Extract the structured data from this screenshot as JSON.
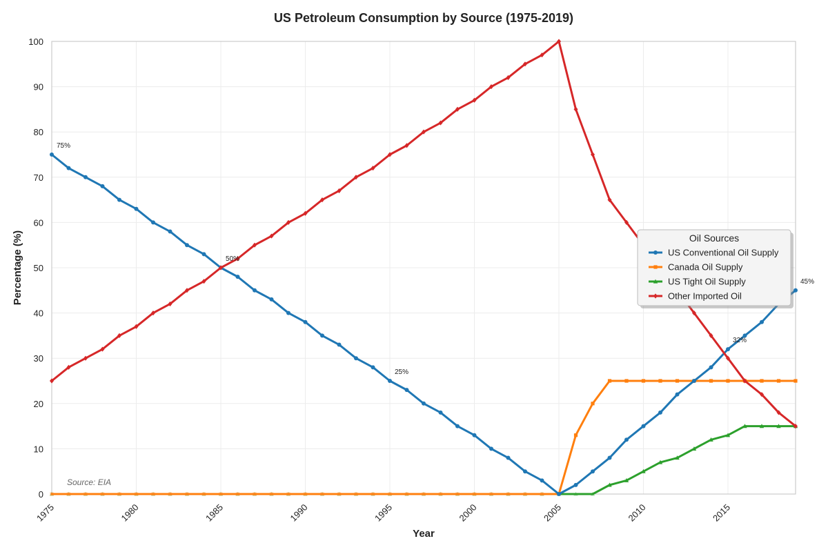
{
  "chart_data": {
    "type": "line",
    "title": "US Petroleum Consumption by Source (1975-2019)",
    "xlabel": "Year",
    "ylabel": "Percentage (%)",
    "xlim": [
      1975,
      2019
    ],
    "ylim": [
      0,
      100
    ],
    "xticks": [
      1975,
      1980,
      1985,
      1990,
      1995,
      2000,
      2005,
      2010,
      2015
    ],
    "yticks": [
      0,
      10,
      20,
      30,
      40,
      50,
      60,
      70,
      80,
      90,
      100
    ],
    "grid": true,
    "legend": {
      "title": "Oil Sources",
      "placement": "center-right"
    },
    "source_note": "Source: EIA",
    "x": [
      1975,
      1976,
      1977,
      1978,
      1979,
      1980,
      1981,
      1982,
      1983,
      1984,
      1985,
      1986,
      1987,
      1988,
      1989,
      1990,
      1991,
      1992,
      1993,
      1994,
      1995,
      1996,
      1997,
      1998,
      1999,
      2000,
      2001,
      2002,
      2003,
      2004,
      2005,
      2006,
      2007,
      2008,
      2009,
      2010,
      2011,
      2012,
      2013,
      2014,
      2015,
      2016,
      2017,
      2018,
      2019
    ],
    "series": [
      {
        "name": "US Conventional Oil Supply",
        "color": "#1f77b4",
        "marker": "circle",
        "values": [
          75,
          72,
          70,
          68,
          65,
          63,
          60,
          58,
          55,
          53,
          50,
          48,
          45,
          43,
          40,
          38,
          35,
          33,
          30,
          28,
          25,
          23,
          20,
          18,
          15,
          13,
          10,
          8,
          5,
          3,
          0,
          2,
          5,
          8,
          12,
          15,
          18,
          22,
          25,
          28,
          32,
          35,
          38,
          42,
          45
        ]
      },
      {
        "name": "Canada Oil Supply",
        "color": "#ff7f0e",
        "marker": "square",
        "values": [
          0,
          0,
          0,
          0,
          0,
          0,
          0,
          0,
          0,
          0,
          0,
          0,
          0,
          0,
          0,
          0,
          0,
          0,
          0,
          0,
          0,
          0,
          0,
          0,
          0,
          0,
          0,
          0,
          0,
          0,
          0,
          13,
          20,
          25,
          25,
          25,
          25,
          25,
          25,
          25,
          25,
          25,
          25,
          25,
          25
        ]
      },
      {
        "name": "US Tight Oil Supply",
        "color": "#2ca02c",
        "marker": "triangle",
        "values": [
          0,
          0,
          0,
          0,
          0,
          0,
          0,
          0,
          0,
          0,
          0,
          0,
          0,
          0,
          0,
          0,
          0,
          0,
          0,
          0,
          0,
          0,
          0,
          0,
          0,
          0,
          0,
          0,
          0,
          0,
          0,
          0,
          0,
          2,
          3,
          5,
          7,
          8,
          10,
          12,
          13,
          15,
          15,
          15,
          15
        ]
      },
      {
        "name": "Other Imported Oil",
        "color": "#d62728",
        "marker": "diamond",
        "values": [
          25,
          28,
          30,
          32,
          35,
          37,
          40,
          42,
          45,
          47,
          50,
          52,
          55,
          57,
          60,
          62,
          65,
          67,
          70,
          72,
          75,
          77,
          80,
          82,
          85,
          87,
          90,
          92,
          95,
          97,
          100,
          85,
          75,
          65,
          60,
          55,
          50,
          45,
          40,
          35,
          30,
          25,
          22,
          18,
          15
        ]
      }
    ],
    "annotations": [
      {
        "text": "75%",
        "x": 1975,
        "y": 75
      },
      {
        "text": "50%",
        "x": 1985,
        "y": 50
      },
      {
        "text": "25%",
        "x": 1995,
        "y": 25
      },
      {
        "text": "32%",
        "x": 2015,
        "y": 32
      },
      {
        "text": "45%",
        "x": 2019,
        "y": 45
      }
    ]
  }
}
